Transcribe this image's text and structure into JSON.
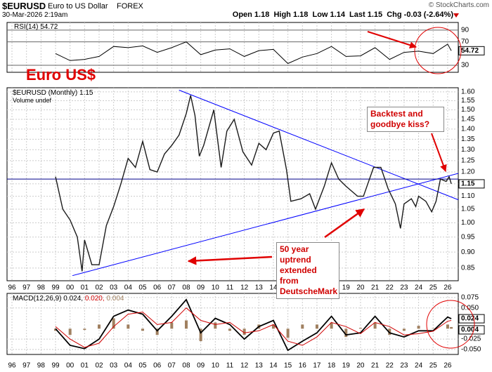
{
  "header": {
    "symbol": "$EURUSD",
    "name": "Euro to US Dollar",
    "exchange": "FOREX",
    "date": "30-Mar-2026 2:19am",
    "quote": "Open 1.18  High 1.18  Low 1.14  Last 1.15  Chg -0.03 (-2.64%)",
    "copyright": "© StockCharts.com"
  },
  "chart_data": [
    {
      "type": "line",
      "title": "RSI(14) 54.72",
      "color": "#000000",
      "x": [
        1999,
        2000,
        2001,
        2002,
        2003,
        2004,
        2005,
        2006,
        2007,
        2008,
        2009,
        2010,
        2011,
        2012,
        2013,
        2014,
        2015,
        2016,
        2017,
        2018,
        2019,
        2020,
        2021,
        2022,
        2023,
        2024,
        2025,
        2026,
        2026.25
      ],
      "values": [
        50,
        38,
        40,
        45,
        62,
        60,
        63,
        52,
        60,
        70,
        48,
        56,
        58,
        45,
        55,
        57,
        33,
        44,
        50,
        62,
        45,
        46,
        60,
        40,
        52,
        54,
        50,
        66,
        54.72
      ],
      "xlim": [
        1995.66,
        2026.73
      ],
      "ylim": [
        18,
        103
      ],
      "yticks": [
        30,
        70,
        90
      ],
      "grid": true
    },
    {
      "type": "line",
      "legend": [
        "$EURUSD (Monthly) 1.15",
        "Volume undef"
      ],
      "color": "#1a1a1a",
      "x": [
        1999,
        1999.5,
        2000,
        2000.5,
        2000.83,
        2001,
        2001.5,
        2002,
        2002.5,
        2003,
        2003.5,
        2004,
        2004.5,
        2005,
        2005.5,
        2006,
        2006.5,
        2007,
        2007.5,
        2008,
        2008.3,
        2008.6,
        2008.9,
        2009.2,
        2009.9,
        2010.4,
        2010.8,
        2011.3,
        2011.9,
        2012.5,
        2013,
        2013.5,
        2014,
        2014.4,
        2014.9,
        2015.2,
        2015.9,
        2016.5,
        2016.9,
        2017.5,
        2018,
        2018.5,
        2019,
        2019.8,
        2020.2,
        2020.9,
        2021.4,
        2021.9,
        2022.4,
        2022.75,
        2023,
        2023.5,
        2023.8,
        2024,
        2024.5,
        2024.9,
        2025.2,
        2025.5,
        2025.9,
        2026.1,
        2026.25
      ],
      "values": [
        1.18,
        1.05,
        1.01,
        0.95,
        0.84,
        0.94,
        0.86,
        0.86,
        0.99,
        1.06,
        1.15,
        1.26,
        1.22,
        1.34,
        1.21,
        1.2,
        1.28,
        1.32,
        1.37,
        1.48,
        1.58,
        1.47,
        1.27,
        1.32,
        1.5,
        1.22,
        1.39,
        1.45,
        1.29,
        1.23,
        1.33,
        1.3,
        1.38,
        1.39,
        1.21,
        1.08,
        1.09,
        1.11,
        1.05,
        1.14,
        1.24,
        1.17,
        1.14,
        1.1,
        1.1,
        1.22,
        1.22,
        1.13,
        1.07,
        0.98,
        1.07,
        1.09,
        1.06,
        1.1,
        1.08,
        1.04,
        1.08,
        1.17,
        1.16,
        1.18,
        1.15
      ],
      "xlim": [
        1995.66,
        2026.73
      ],
      "xticks": [
        {
          "value": 1996,
          "label": "96"
        },
        {
          "value": 1997,
          "label": "97"
        },
        {
          "value": 1998,
          "label": "98"
        },
        {
          "value": 1999,
          "label": "99"
        },
        {
          "value": 2000,
          "label": "00"
        },
        {
          "value": 2001,
          "label": "01"
        },
        {
          "value": 2002,
          "label": "02"
        },
        {
          "value": 2003,
          "label": "03"
        },
        {
          "value": 2004,
          "label": "04"
        },
        {
          "value": 2005,
          "label": "05"
        },
        {
          "value": 2006,
          "label": "06"
        },
        {
          "value": 2007,
          "label": "07"
        },
        {
          "value": 2008,
          "label": "08"
        },
        {
          "value": 2009,
          "label": "09"
        },
        {
          "value": 2010,
          "label": "10"
        },
        {
          "value": 2011,
          "label": "11"
        },
        {
          "value": 2012,
          "label": "12"
        },
        {
          "value": 2013,
          "label": "13"
        },
        {
          "value": 2014,
          "label": "14"
        },
        {
          "value": 2015,
          "label": "15"
        },
        {
          "value": 2016,
          "label": "16"
        },
        {
          "value": 2017,
          "label": "17"
        },
        {
          "value": 2018,
          "label": "18"
        },
        {
          "value": 2019,
          "label": "19"
        },
        {
          "value": 2020,
          "label": "20"
        },
        {
          "value": 2021,
          "label": "21"
        },
        {
          "value": 2022,
          "label": "22"
        },
        {
          "value": 2023,
          "label": "23"
        },
        {
          "value": 2024,
          "label": "24"
        },
        {
          "value": 2025,
          "label": "25"
        },
        {
          "value": 2026,
          "label": "26"
        }
      ],
      "ylim": [
        0.812,
        1.624
      ],
      "log_scale": true,
      "yticks": [
        0.85,
        {
          "value": 0.9,
          "label": "0.90"
        },
        0.95,
        {
          "value": 1,
          "label": "1.00"
        },
        1.05,
        {
          "value": 1.1,
          "label": "1.10"
        },
        1.15,
        {
          "value": 1.2,
          "label": "1.20"
        },
        1.25,
        {
          "value": 1.3,
          "label": "1.30"
        },
        1.35,
        {
          "value": 1.4,
          "label": "1.40"
        },
        1.45,
        {
          "value": 1.5,
          "label": "1.50"
        },
        1.55,
        {
          "value": 1.6,
          "label": "1.60"
        }
      ],
      "grid": true,
      "trendlines": [
        {
          "color": "#0000ff",
          "x": [
            2007.5,
            2026.73
          ],
          "values": [
            1.61,
            1.086
          ]
        },
        {
          "color": "#0000ff",
          "x": [
            2000.16,
            2026.73
          ],
          "values": [
            0.827,
            1.194
          ]
        },
        {
          "color": "#00008b",
          "x": [
            1995.66,
            2026.73
          ],
          "values": [
            1.17,
            1.17
          ]
        }
      ],
      "annotations": [
        "Euro US$",
        "Backtest and goodbye kiss?",
        "50 year uptrend extended from DeutscheMark"
      ]
    },
    {
      "type": "macd",
      "title": "MACD(12,26,9)",
      "legend_values": [
        "0.024,",
        "0.020,",
        "0.004"
      ],
      "x": [
        1999,
        2000,
        2001,
        2002,
        2003,
        2004,
        2005,
        2006,
        2007,
        2008,
        2009,
        2010,
        2011,
        2012,
        2013,
        2014,
        2015,
        2016,
        2017,
        2018,
        2019,
        2020,
        2021,
        2022,
        2023,
        2024,
        2025,
        2026,
        2026.25
      ],
      "series": [
        {
          "color": "#000000",
          "values": [
            0,
            -0.04,
            -0.048,
            -0.025,
            0.03,
            0.045,
            0.035,
            -0.005,
            0.03,
            0.07,
            -0.01,
            0.025,
            0.01,
            -0.025,
            0.005,
            0.02,
            -0.052,
            -0.03,
            -0.01,
            0.03,
            -0.015,
            -0.01,
            0.03,
            -0.01,
            -0.02,
            -0.005,
            -0.005,
            0.028,
            0.024
          ]
        },
        {
          "color": "#d00000",
          "values": [
            0.005,
            -0.025,
            -0.045,
            -0.035,
            0.005,
            0.035,
            0.04,
            0.01,
            0.015,
            0.05,
            0.02,
            0.01,
            0.015,
            -0.01,
            -0.005,
            0.01,
            -0.03,
            -0.04,
            -0.02,
            0.015,
            0.005,
            -0.012,
            0.015,
            0.005,
            -0.015,
            -0.012,
            -0.006,
            0.018,
            0.02
          ]
        }
      ],
      "histogram": {
        "color": "#a08060",
        "values": [
          -0.005,
          -0.015,
          -0.003,
          0.01,
          0.025,
          0.01,
          -0.005,
          -0.015,
          0.015,
          0.02,
          -0.03,
          0.015,
          -0.005,
          -0.015,
          0.01,
          0.01,
          -0.022,
          0.01,
          0.01,
          0.015,
          -0.02,
          0.002,
          0.015,
          -0.015,
          -0.005,
          0.007,
          0.001,
          0.01,
          0.004
        ]
      },
      "xlim": [
        1995.66,
        2026.73
      ],
      "xticks": [
        {
          "value": 1996,
          "label": "96"
        },
        {
          "value": 1997,
          "label": "97"
        },
        {
          "value": 1998,
          "label": "98"
        },
        {
          "value": 1999,
          "label": "99"
        },
        {
          "value": 2000,
          "label": "00"
        },
        {
          "value": 2001,
          "label": "01"
        },
        {
          "value": 2002,
          "label": "02"
        },
        {
          "value": 2003,
          "label": "03"
        },
        {
          "value": 2004,
          "label": "04"
        },
        {
          "value": 2005,
          "label": "05"
        },
        {
          "value": 2006,
          "label": "06"
        },
        {
          "value": 2007,
          "label": "07"
        },
        {
          "value": 2008,
          "label": "08"
        },
        {
          "value": 2009,
          "label": "09"
        },
        {
          "value": 2010,
          "label": "10"
        },
        {
          "value": 2011,
          "label": "11"
        },
        {
          "value": 2012,
          "label": "12"
        },
        {
          "value": 2013,
          "label": "13"
        },
        {
          "value": 2014,
          "label": "14"
        },
        {
          "value": 2015,
          "label": "15"
        },
        {
          "value": 2016,
          "label": "16"
        },
        {
          "value": 2017,
          "label": "17"
        },
        {
          "value": 2018,
          "label": "18"
        },
        {
          "value": 2019,
          "label": "19"
        },
        {
          "value": 2020,
          "label": "20"
        },
        {
          "value": 2021,
          "label": "21"
        },
        {
          "value": 2022,
          "label": "22"
        },
        {
          "value": 2023,
          "label": "23"
        },
        {
          "value": 2024,
          "label": "24"
        },
        {
          "value": 2025,
          "label": "25"
        },
        {
          "value": 2026,
          "label": "26"
        }
      ],
      "ylim": [
        -0.062,
        0.085
      ],
      "yticks": [
        0.075,
        {
          "value": 0.05,
          "label": "0.050"
        },
        -0.025,
        {
          "value": -0.05,
          "label": "-0.050"
        }
      ],
      "grid": true
    }
  ]
}
